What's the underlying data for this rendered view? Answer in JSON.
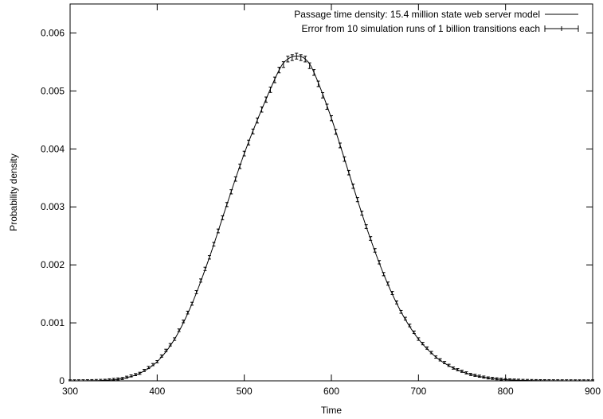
{
  "chart_data": {
    "type": "line",
    "xlabel": "Time",
    "ylabel": "Probability density",
    "xlim": [
      300,
      900
    ],
    "ylim": [
      0,
      0.0065
    ],
    "x_ticks": [
      "300",
      "400",
      "500",
      "600",
      "700",
      "800",
      "900"
    ],
    "y_ticks": [
      "0",
      "0.001",
      "0.002",
      "0.003",
      "0.004",
      "0.005",
      "0.006"
    ],
    "grid": false,
    "legend_position": "top-right",
    "series": [
      {
        "name": "Passage time density: 15.4 million state web server model",
        "style": "line",
        "x": [
          300,
          320,
          340,
          360,
          380,
          400,
          420,
          440,
          460,
          480,
          500,
          520,
          540,
          550,
          560,
          570,
          580,
          600,
          620,
          640,
          660,
          680,
          700,
          720,
          740,
          760,
          780,
          800,
          820,
          840,
          860,
          880,
          900
        ],
        "y": [
          0.0,
          2e-06,
          1e-05,
          4e-05,
          0.00013,
          0.00033,
          0.00072,
          0.00133,
          0.00213,
          0.00304,
          0.00392,
          0.00468,
          0.00536,
          0.00555,
          0.0056,
          0.00555,
          0.00532,
          0.00453,
          0.00359,
          0.00266,
          0.00184,
          0.00119,
          0.00072,
          0.00041,
          0.00022,
          0.00011,
          5e-05,
          2e-05,
          8e-06,
          3e-06,
          1e-06,
          0.0,
          0.0
        ]
      },
      {
        "name": "Error from 10 simulation runs of 1 billion transitions each",
        "style": "errorbars",
        "x_start": 300,
        "x_step": 5,
        "count": 121,
        "error": 5e-05
      }
    ]
  }
}
